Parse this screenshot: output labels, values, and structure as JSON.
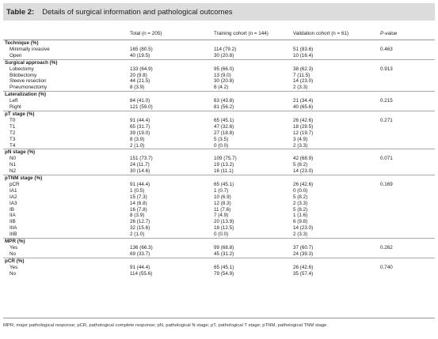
{
  "title": {
    "label": "Table 2:",
    "text": "Details of surgical information and pathological outcomes"
  },
  "columns": [
    "",
    "Total (n = 205)",
    "Training cohort (n = 144)",
    "Validation cohort (n = 61)",
    "P-value"
  ],
  "rows": [
    {
      "type": "section",
      "label": "Technique (%)"
    },
    {
      "type": "data",
      "label": "Minimally invasive",
      "total": "165 (80.5)",
      "train": "114 (79.2)",
      "valid": "51 (83.6)",
      "p": "0.463"
    },
    {
      "type": "data",
      "label": "Open",
      "total": "40 (19.5)",
      "train": "30 (20.8)",
      "valid": "10 (16.4)",
      "p": ""
    },
    {
      "type": "section",
      "label": "Surgical approach (%)"
    },
    {
      "type": "data",
      "label": "Lobectomy",
      "total": "133 (64.9)",
      "train": "95 (66.0)",
      "valid": "38 (62.3)",
      "p": "0.913"
    },
    {
      "type": "data",
      "label": "Bilobectomy",
      "total": "20 (9.8)",
      "train": "13 (9.0)",
      "valid": "7 (11.5)",
      "p": ""
    },
    {
      "type": "data",
      "label": "Sleeve resection",
      "total": "44 (21.5)",
      "train": "30 (20.8)",
      "valid": "14 (23.0)",
      "p": ""
    },
    {
      "type": "data",
      "label": "Pneumonectomy",
      "total": "8 (3.9)",
      "train": "6 (4.2)",
      "valid": "2 (3.3)",
      "p": ""
    },
    {
      "type": "section",
      "label": "Lateralization (%)"
    },
    {
      "type": "data",
      "label": "Left",
      "total": "84 (41.0)",
      "train": "63 (43.8)",
      "valid": "21 (34.4)",
      "p": "0.215"
    },
    {
      "type": "data",
      "label": "Right",
      "total": "121 (59.0)",
      "train": "81 (56.2)",
      "valid": "40 (65.6)",
      "p": ""
    },
    {
      "type": "section",
      "label": "pT stage (%)"
    },
    {
      "type": "data",
      "label": "T0",
      "total": "91 (44.4)",
      "train": "65 (45.1)",
      "valid": "26 (42.6)",
      "p": "0.271"
    },
    {
      "type": "data",
      "label": "T1",
      "total": "65 (31.7)",
      "train": "47 (32.6)",
      "valid": "18 (29.5)",
      "p": ""
    },
    {
      "type": "data",
      "label": "T2",
      "total": "39 (19.0)",
      "train": "27 (18.8)",
      "valid": "12 (19.7)",
      "p": ""
    },
    {
      "type": "data",
      "label": "T3",
      "total": "8 (3.9)",
      "train": "5 (3.5)",
      "valid": "3 (4.9)",
      "p": ""
    },
    {
      "type": "data",
      "label": "T4",
      "total": "2 (1.0)",
      "train": "0 (0.0)",
      "valid": "2 (3.3)",
      "p": ""
    },
    {
      "type": "section",
      "label": "pN stage (%)"
    },
    {
      "type": "data",
      "label": "N0",
      "total": "151 (73.7)",
      "train": "109 (75.7)",
      "valid": "42 (68.9)",
      "p": "0.071"
    },
    {
      "type": "data",
      "label": "N1",
      "total": "24 (11.7)",
      "train": "19 (13.2)",
      "valid": "5 (8.2)",
      "p": ""
    },
    {
      "type": "data",
      "label": "N2",
      "total": "30 (14.6)",
      "train": "16 (11.1)",
      "valid": "14 (23.0)",
      "p": ""
    },
    {
      "type": "section",
      "label": "pTNM stage (%)"
    },
    {
      "type": "data",
      "label": "pCR",
      "total": "91 (44.4)",
      "train": "65 (45.1)",
      "valid": "26 (42.6)",
      "p": "0.169"
    },
    {
      "type": "data",
      "label": "IA1",
      "total": "1 (0.5)",
      "train": "1 (0.7)",
      "valid": "0 (0.0)",
      "p": ""
    },
    {
      "type": "data",
      "label": "IA2",
      "total": "15 (7.3)",
      "train": "10 (6.9)",
      "valid": "5 (8.2)",
      "p": ""
    },
    {
      "type": "data",
      "label": "IA3",
      "total": "14 (6.8)",
      "train": "12 (8.3)",
      "valid": "2 (3.3)",
      "p": ""
    },
    {
      "type": "data",
      "label": "IB",
      "total": "16 (7.8)",
      "train": "11 (7.6)",
      "valid": "5 (8.2)",
      "p": ""
    },
    {
      "type": "data",
      "label": "IIA",
      "total": "8 (3.9)",
      "train": "7 (4.9)",
      "valid": "1 (1.6)",
      "p": ""
    },
    {
      "type": "data",
      "label": "IIB",
      "total": "26 (12.7)",
      "train": "20 (13.9)",
      "valid": "6 (9.8)",
      "p": ""
    },
    {
      "type": "data",
      "label": "IIIA",
      "total": "32 (15.6)",
      "train": "18 (12.5)",
      "valid": "14 (23.0)",
      "p": ""
    },
    {
      "type": "data",
      "label": "IIIB",
      "total": "2 (1.0)",
      "train": "0 (0.0)",
      "valid": "2 (3.3)",
      "p": ""
    },
    {
      "type": "section",
      "label": "MPR (%)"
    },
    {
      "type": "data",
      "label": "Yes",
      "total": "136 (66.3)",
      "train": "99 (68.8)",
      "valid": "37 (60.7)",
      "p": "0.262"
    },
    {
      "type": "data",
      "label": "No",
      "total": "69 (33.7)",
      "train": "45 (31.2)",
      "valid": "24 (39.3)",
      "p": ""
    },
    {
      "type": "section",
      "label": "pCR (%)"
    },
    {
      "type": "data",
      "label": "Yes",
      "total": "91 (44.4)",
      "train": "65 (45.1)",
      "valid": "26 (42.6)",
      "p": "0.740"
    },
    {
      "type": "data",
      "label": "No",
      "total": "114 (55.6)",
      "train": "79 (54.9)",
      "valid": "35 (57.4)",
      "p": ""
    }
  ],
  "footnote": "MPR, major pathological response; pCR, pathological complete response; pN, pathological N stage; pT, pathological T stage; pTNM, pathological TNM stage."
}
